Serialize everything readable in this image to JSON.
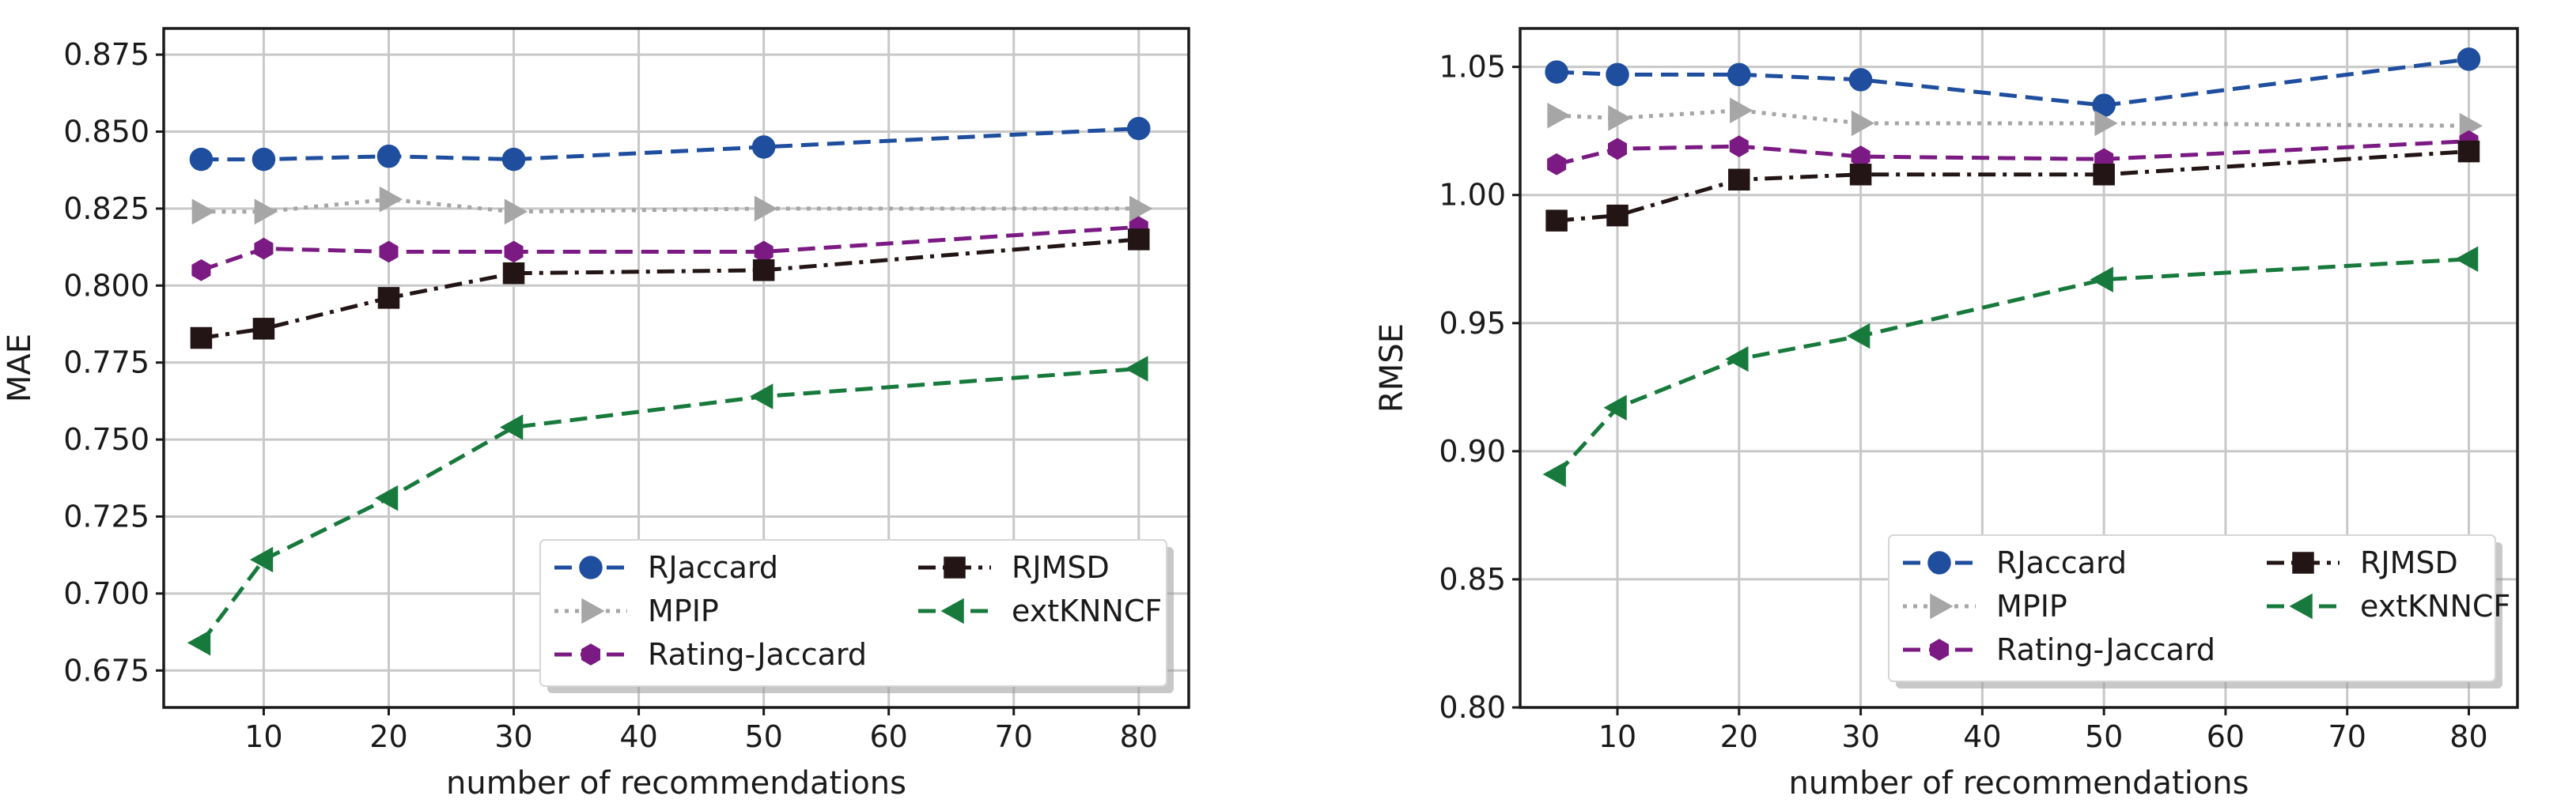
{
  "chart_data": [
    {
      "type": "line",
      "xlabel": "number of recommendations",
      "ylabel": "MAE",
      "xlim": [
        2,
        84
      ],
      "ylim": [
        0.663,
        0.8835
      ],
      "xticks": [
        10,
        20,
        30,
        40,
        50,
        60,
        70,
        80
      ],
      "xtick_labels": [
        "10",
        "20",
        "30",
        "40",
        "50",
        "60",
        "70",
        "80"
      ],
      "yticks": [
        0.675,
        0.7,
        0.725,
        0.75,
        0.775,
        0.8,
        0.825,
        0.85,
        0.875
      ],
      "ytick_labels": [
        "0.675",
        "0.700",
        "0.725",
        "0.750",
        "0.775",
        "0.800",
        "0.825",
        "0.850",
        "0.875"
      ],
      "grid": true,
      "legend_position": "bottom-right",
      "x": [
        5,
        10,
        20,
        30,
        50,
        80
      ],
      "series": [
        {
          "name": "RJaccard",
          "color": "#1f4e9f",
          "marker": "circle",
          "dash": "dashed",
          "values": [
            0.841,
            0.841,
            0.842,
            0.841,
            0.845,
            0.851
          ]
        },
        {
          "name": "MPIP",
          "color": "#a6a6a6",
          "marker": "triangle-right",
          "dash": "dotted",
          "values": [
            0.824,
            0.824,
            0.828,
            0.824,
            0.825,
            0.825
          ]
        },
        {
          "name": "Rating-Jaccard",
          "color": "#7b1a83",
          "marker": "hexagon",
          "dash": "dashed",
          "values": [
            0.805,
            0.812,
            0.811,
            0.811,
            0.811,
            0.819
          ]
        },
        {
          "name": "RJMSD",
          "color": "#231515",
          "marker": "square",
          "dash": "dashdot",
          "values": [
            0.783,
            0.786,
            0.796,
            0.804,
            0.805,
            0.815
          ]
        },
        {
          "name": "extKNNCF",
          "color": "#177a3c",
          "marker": "triangle-left",
          "dash": "dashed",
          "values": [
            0.684,
            0.711,
            0.731,
            0.754,
            0.764,
            0.773
          ]
        }
      ]
    },
    {
      "type": "line",
      "xlabel": "number of recommendations",
      "ylabel": "RMSE",
      "xlim": [
        2,
        84
      ],
      "ylim": [
        0.8,
        1.065
      ],
      "xticks": [
        10,
        20,
        30,
        40,
        50,
        60,
        70,
        80
      ],
      "xtick_labels": [
        "10",
        "20",
        "30",
        "40",
        "50",
        "60",
        "70",
        "80"
      ],
      "yticks": [
        0.8,
        0.85,
        0.9,
        0.95,
        1.0,
        1.05
      ],
      "ytick_labels": [
        "0.80",
        "0.85",
        "0.90",
        "0.95",
        "1.00",
        "1.05"
      ],
      "grid": true,
      "legend_position": "bottom-right",
      "x": [
        5,
        10,
        20,
        30,
        50,
        80
      ],
      "series": [
        {
          "name": "RJaccard",
          "color": "#1f4e9f",
          "marker": "circle",
          "dash": "dashed",
          "values": [
            1.048,
            1.047,
            1.047,
            1.045,
            1.035,
            1.053
          ]
        },
        {
          "name": "MPIP",
          "color": "#a6a6a6",
          "marker": "triangle-right",
          "dash": "dotted",
          "values": [
            1.031,
            1.03,
            1.033,
            1.028,
            1.028,
            1.027
          ]
        },
        {
          "name": "Rating-Jaccard",
          "color": "#7b1a83",
          "marker": "hexagon",
          "dash": "dashed",
          "values": [
            1.012,
            1.018,
            1.019,
            1.015,
            1.014,
            1.021
          ]
        },
        {
          "name": "RJMSD",
          "color": "#231515",
          "marker": "square",
          "dash": "dashdot",
          "values": [
            0.99,
            0.992,
            1.006,
            1.008,
            1.008,
            1.017
          ]
        },
        {
          "name": "extKNNCF",
          "color": "#177a3c",
          "marker": "triangle-left",
          "dash": "dashed",
          "values": [
            0.891,
            0.917,
            0.936,
            0.945,
            0.967,
            0.975
          ]
        }
      ]
    }
  ]
}
